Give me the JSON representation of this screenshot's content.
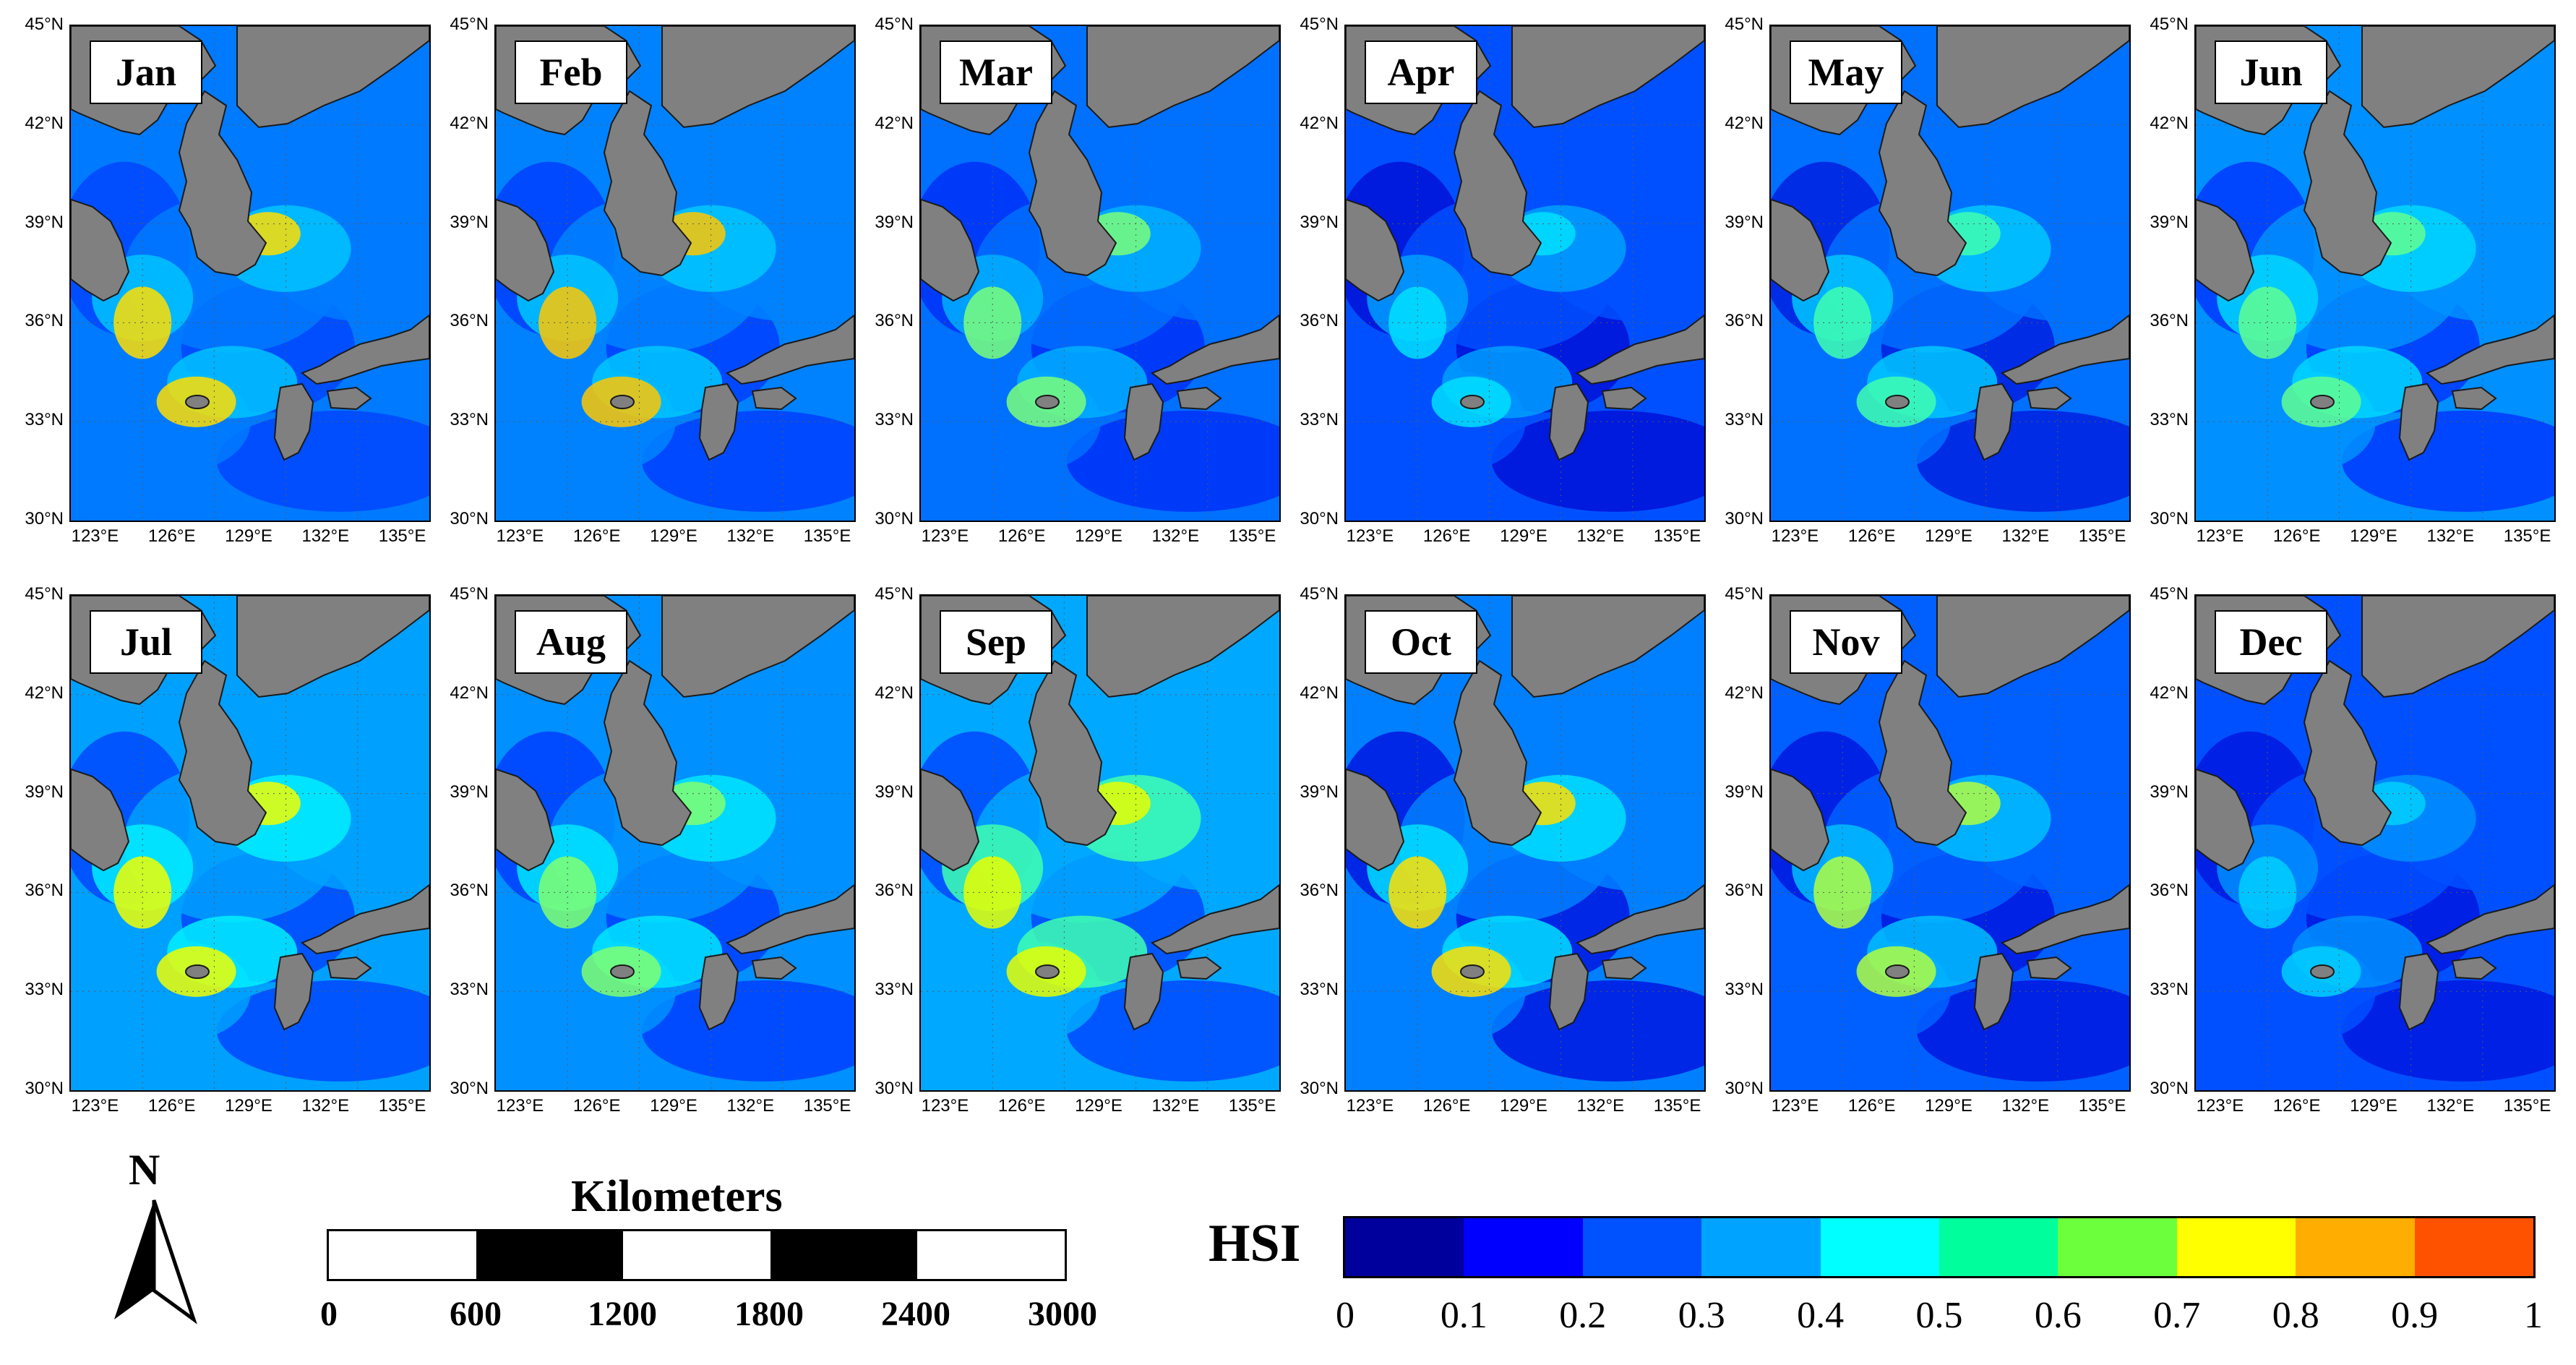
{
  "figure": {
    "months": [
      "Jan",
      "Feb",
      "Mar",
      "Apr",
      "May",
      "Jun",
      "Jul",
      "Aug",
      "Sep",
      "Oct",
      "Nov",
      "Dec"
    ],
    "latitude_ticks": [
      "45°N",
      "42°N",
      "39°N",
      "36°N",
      "33°N",
      "30°N"
    ],
    "longitude_ticks": [
      "123°E",
      "126°E",
      "129°E",
      "132°E",
      "135°E"
    ],
    "latitude_range": [
      30,
      45
    ],
    "longitude_range": [
      122,
      136
    ],
    "land_color": "#808080"
  },
  "north_arrow": {
    "label": "N"
  },
  "scale_bar": {
    "title": "Kilometers",
    "labels": [
      "0",
      "600",
      "1200",
      "1800",
      "2400",
      "3000"
    ]
  },
  "colorbar": {
    "title": "HSI",
    "labels": [
      "0",
      "0.1",
      "0.2",
      "0.3",
      "0.4",
      "0.5",
      "0.6",
      "0.7",
      "0.8",
      "0.9",
      "1"
    ],
    "colors": [
      "#00009c",
      "#0000ff",
      "#0052ff",
      "#00a3ff",
      "#00ffff",
      "#00ff9c",
      "#6cff3c",
      "#ffff00",
      "#ffad00",
      "#ff5200"
    ]
  },
  "monthly_pattern": {
    "Jan": [
      "#0046ff",
      "#007aff",
      "#00c4ff",
      "#ffde00"
    ],
    "Feb": [
      "#0040ff",
      "#0082ff",
      "#00c8ff",
      "#ffc800"
    ],
    "Mar": [
      "#0030f8",
      "#0070ff",
      "#00b0ff",
      "#7aff7a"
    ],
    "Apr": [
      "#0010d8",
      "#0050ff",
      "#00a0ff",
      "#00e0ff"
    ],
    "May": [
      "#0020e0",
      "#0070ff",
      "#00c8ff",
      "#40ffb0"
    ],
    "Jun": [
      "#0038ff",
      "#0090ff",
      "#00d8ff",
      "#60ff90"
    ],
    "Jul": [
      "#0048ff",
      "#00a0ff",
      "#00f0ff",
      "#f0ff00"
    ],
    "Aug": [
      "#0040ff",
      "#0090ff",
      "#00e8ff",
      "#80ff70"
    ],
    "Sep": [
      "#0048ff",
      "#00a8ff",
      "#40ffb0",
      "#e8ff00"
    ],
    "Oct": [
      "#0018e0",
      "#0080ff",
      "#00e0ff",
      "#ffe000"
    ],
    "Nov": [
      "#0018e0",
      "#0060ff",
      "#00c0ff",
      "#b0ff40"
    ],
    "Dec": [
      "#0018e0",
      "#0050ff",
      "#0090ff",
      "#00d0ff"
    ]
  }
}
